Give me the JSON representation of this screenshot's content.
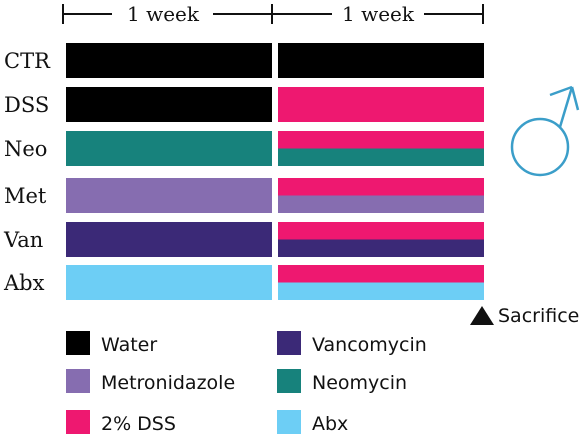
{
  "timeline": {
    "segments": [
      "1 week",
      "1 week"
    ]
  },
  "groups": [
    {
      "label": "CTR",
      "week1": [
        "water"
      ],
      "week2": [
        "water"
      ]
    },
    {
      "label": "DSS",
      "week1": [
        "water"
      ],
      "week2": [
        "dss"
      ]
    },
    {
      "label": "Neo",
      "week1": [
        "neomycin"
      ],
      "week2": [
        "dss",
        "neomycin"
      ]
    },
    {
      "label": "Met",
      "week1": [
        "metronidazole"
      ],
      "week2": [
        "dss",
        "metronidazole"
      ]
    },
    {
      "label": "Van",
      "week1": [
        "vancomycin"
      ],
      "week2": [
        "dss",
        "vancomycin"
      ]
    },
    {
      "label": "Abx",
      "week1": [
        "abx"
      ],
      "week2": [
        "dss",
        "abx"
      ]
    }
  ],
  "endpoint": {
    "label": "Sacrifice"
  },
  "sex_symbol": {
    "icon": "male-symbol-icon",
    "color": "#3b9ec9"
  },
  "treatments": {
    "water": {
      "label": "Water",
      "color": "#000000"
    },
    "metronidazole": {
      "label": "Metronidazole",
      "color": "#866db0"
    },
    "dss": {
      "label": "2% DSS",
      "color": "#ee1870"
    },
    "vancomycin": {
      "label": "Vancomycin",
      "color": "#3b2977"
    },
    "neomycin": {
      "label": "Neomycin",
      "color": "#17827c"
    },
    "abx": {
      "label": "Abx",
      "color": "#6dcef5"
    }
  },
  "legend_order": [
    "water",
    "metronidazole",
    "dss",
    "vancomycin",
    "neomycin",
    "abx"
  ]
}
